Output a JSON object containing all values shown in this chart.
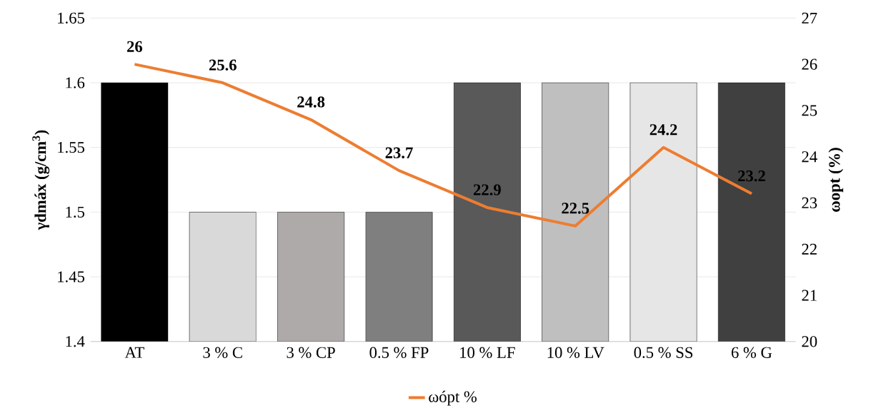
{
  "chart_data": {
    "type": "bar",
    "categories": [
      "AT",
      "3 % C",
      "3 % CP",
      "0.5 % FP",
      "10 % LF",
      "10 % LV",
      "0.5 % SS",
      "6 % G"
    ],
    "ylabel": "γdmáx (g/cm$^{3}$)",
    "y2label": "ωopt (%)",
    "series": [
      {
        "colors": [
          "#000000",
          "#d9d9d9",
          "#aeaaaa",
          "#7f7f7f",
          "#595959",
          "#bfbfbf",
          "#e7e6e6",
          "#404040"
        ],
        "values": [
          1.6,
          1.5,
          1.5,
          1.5,
          1.6,
          1.6,
          1.6,
          1.6
        ]
      },
      {
        "type": "line",
        "name": "ωópt %",
        "color": "#ed7d31",
        "axis": "y2",
        "values": [
          26,
          25.6,
          24.8,
          23.7,
          22.9,
          22.5,
          24.2,
          23.2
        ],
        "value_labels": [
          "26",
          "25.6",
          "24.8",
          "23.7",
          "22.9",
          "22.5",
          "24.2",
          "23.2"
        ]
      }
    ],
    "ylim": [
      1.4,
      1.65
    ],
    "yticks": [
      1.4,
      1.45,
      1.5,
      1.55,
      1.6,
      1.65
    ],
    "y2lim": [
      20,
      27
    ],
    "y2ticks": [
      20,
      21,
      22,
      23,
      24,
      25,
      26,
      27
    ],
    "grid": "y",
    "legend": "bottom"
  }
}
